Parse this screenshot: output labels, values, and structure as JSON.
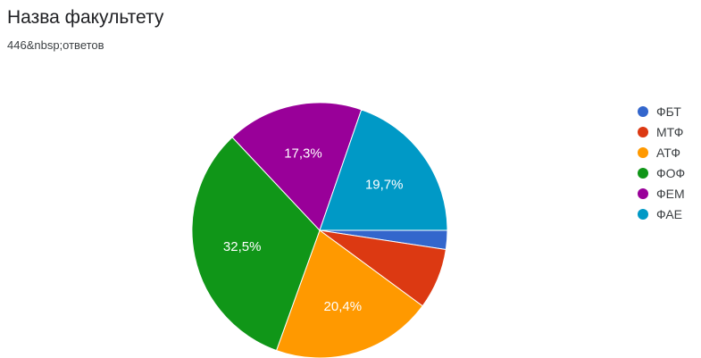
{
  "header": {
    "title": "Назва факультету",
    "responses": "446&nbsp;ответов"
  },
  "chart_data": {
    "type": "pie",
    "labels": [
      "ФБТ",
      "МТФ",
      "АТФ",
      "ФОФ",
      "ФЕМ",
      "ФАЕ"
    ],
    "values": [
      2.4,
      7.7,
      20.4,
      32.5,
      17.3,
      19.7
    ],
    "value_labels": [
      "",
      "",
      "20,4%",
      "32,5%",
      "17,3%",
      "19,7%"
    ],
    "colors": [
      "#3366cc",
      "#dc3912",
      "#ff9900",
      "#109618",
      "#990099",
      "#0099c6"
    ],
    "legend_position": "right"
  }
}
